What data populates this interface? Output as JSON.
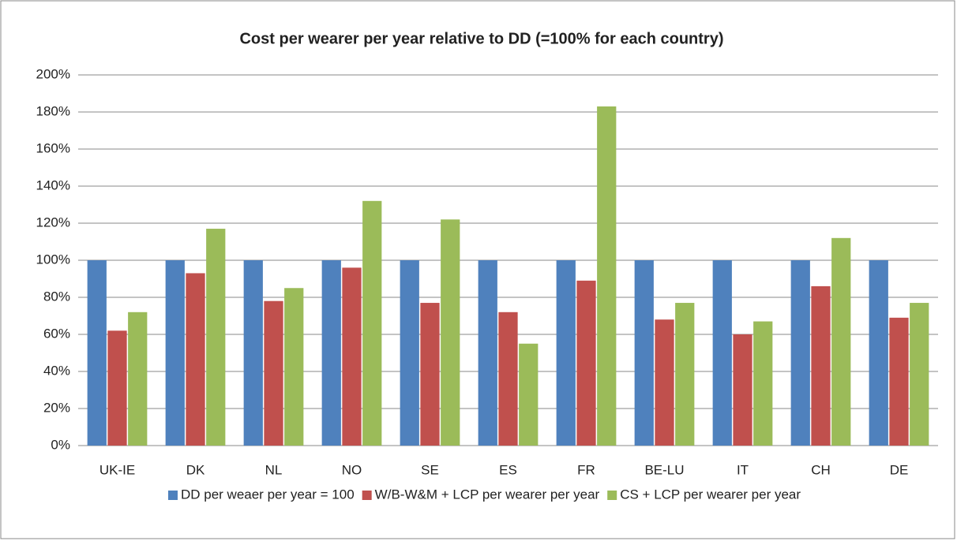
{
  "chart_data": {
    "type": "bar",
    "title": "Cost per wearer per year relative to DD (=100% for each country)",
    "categories": [
      "UK-IE",
      "DK",
      "NL",
      "NO",
      "SE",
      "ES",
      "FR",
      "BE-LU",
      "IT",
      "CH",
      "DE"
    ],
    "series": [
      {
        "name": "DD per weaer per year = 100",
        "color": "#4f81bd",
        "values": [
          100,
          100,
          100,
          100,
          100,
          100,
          100,
          100,
          100,
          100,
          100
        ]
      },
      {
        "name": "W/B-W&M + LCP per wearer per year",
        "color": "#c0504d",
        "values": [
          62,
          93,
          78,
          96,
          77,
          72,
          89,
          68,
          60,
          86,
          69
        ]
      },
      {
        "name": "CS + LCP per wearer per year",
        "color": "#9bbb59",
        "values": [
          72,
          117,
          85,
          132,
          122,
          55,
          183,
          77,
          67,
          112,
          77
        ]
      }
    ],
    "ylim": [
      0,
      200
    ],
    "yticks": [
      {
        "value": 0,
        "label": "0%"
      },
      {
        "value": 20,
        "label": "20%"
      },
      {
        "value": 40,
        "label": "40%"
      },
      {
        "value": 60,
        "label": "60%"
      },
      {
        "value": 80,
        "label": "80%"
      },
      {
        "value": 100,
        "label": "100%"
      },
      {
        "value": 120,
        "label": "120%"
      },
      {
        "value": 140,
        "label": "140%"
      },
      {
        "value": 160,
        "label": "160%"
      },
      {
        "value": 180,
        "label": "180%"
      },
      {
        "value": 200,
        "label": "200%"
      }
    ],
    "grid": true,
    "legend": "bottom"
  }
}
